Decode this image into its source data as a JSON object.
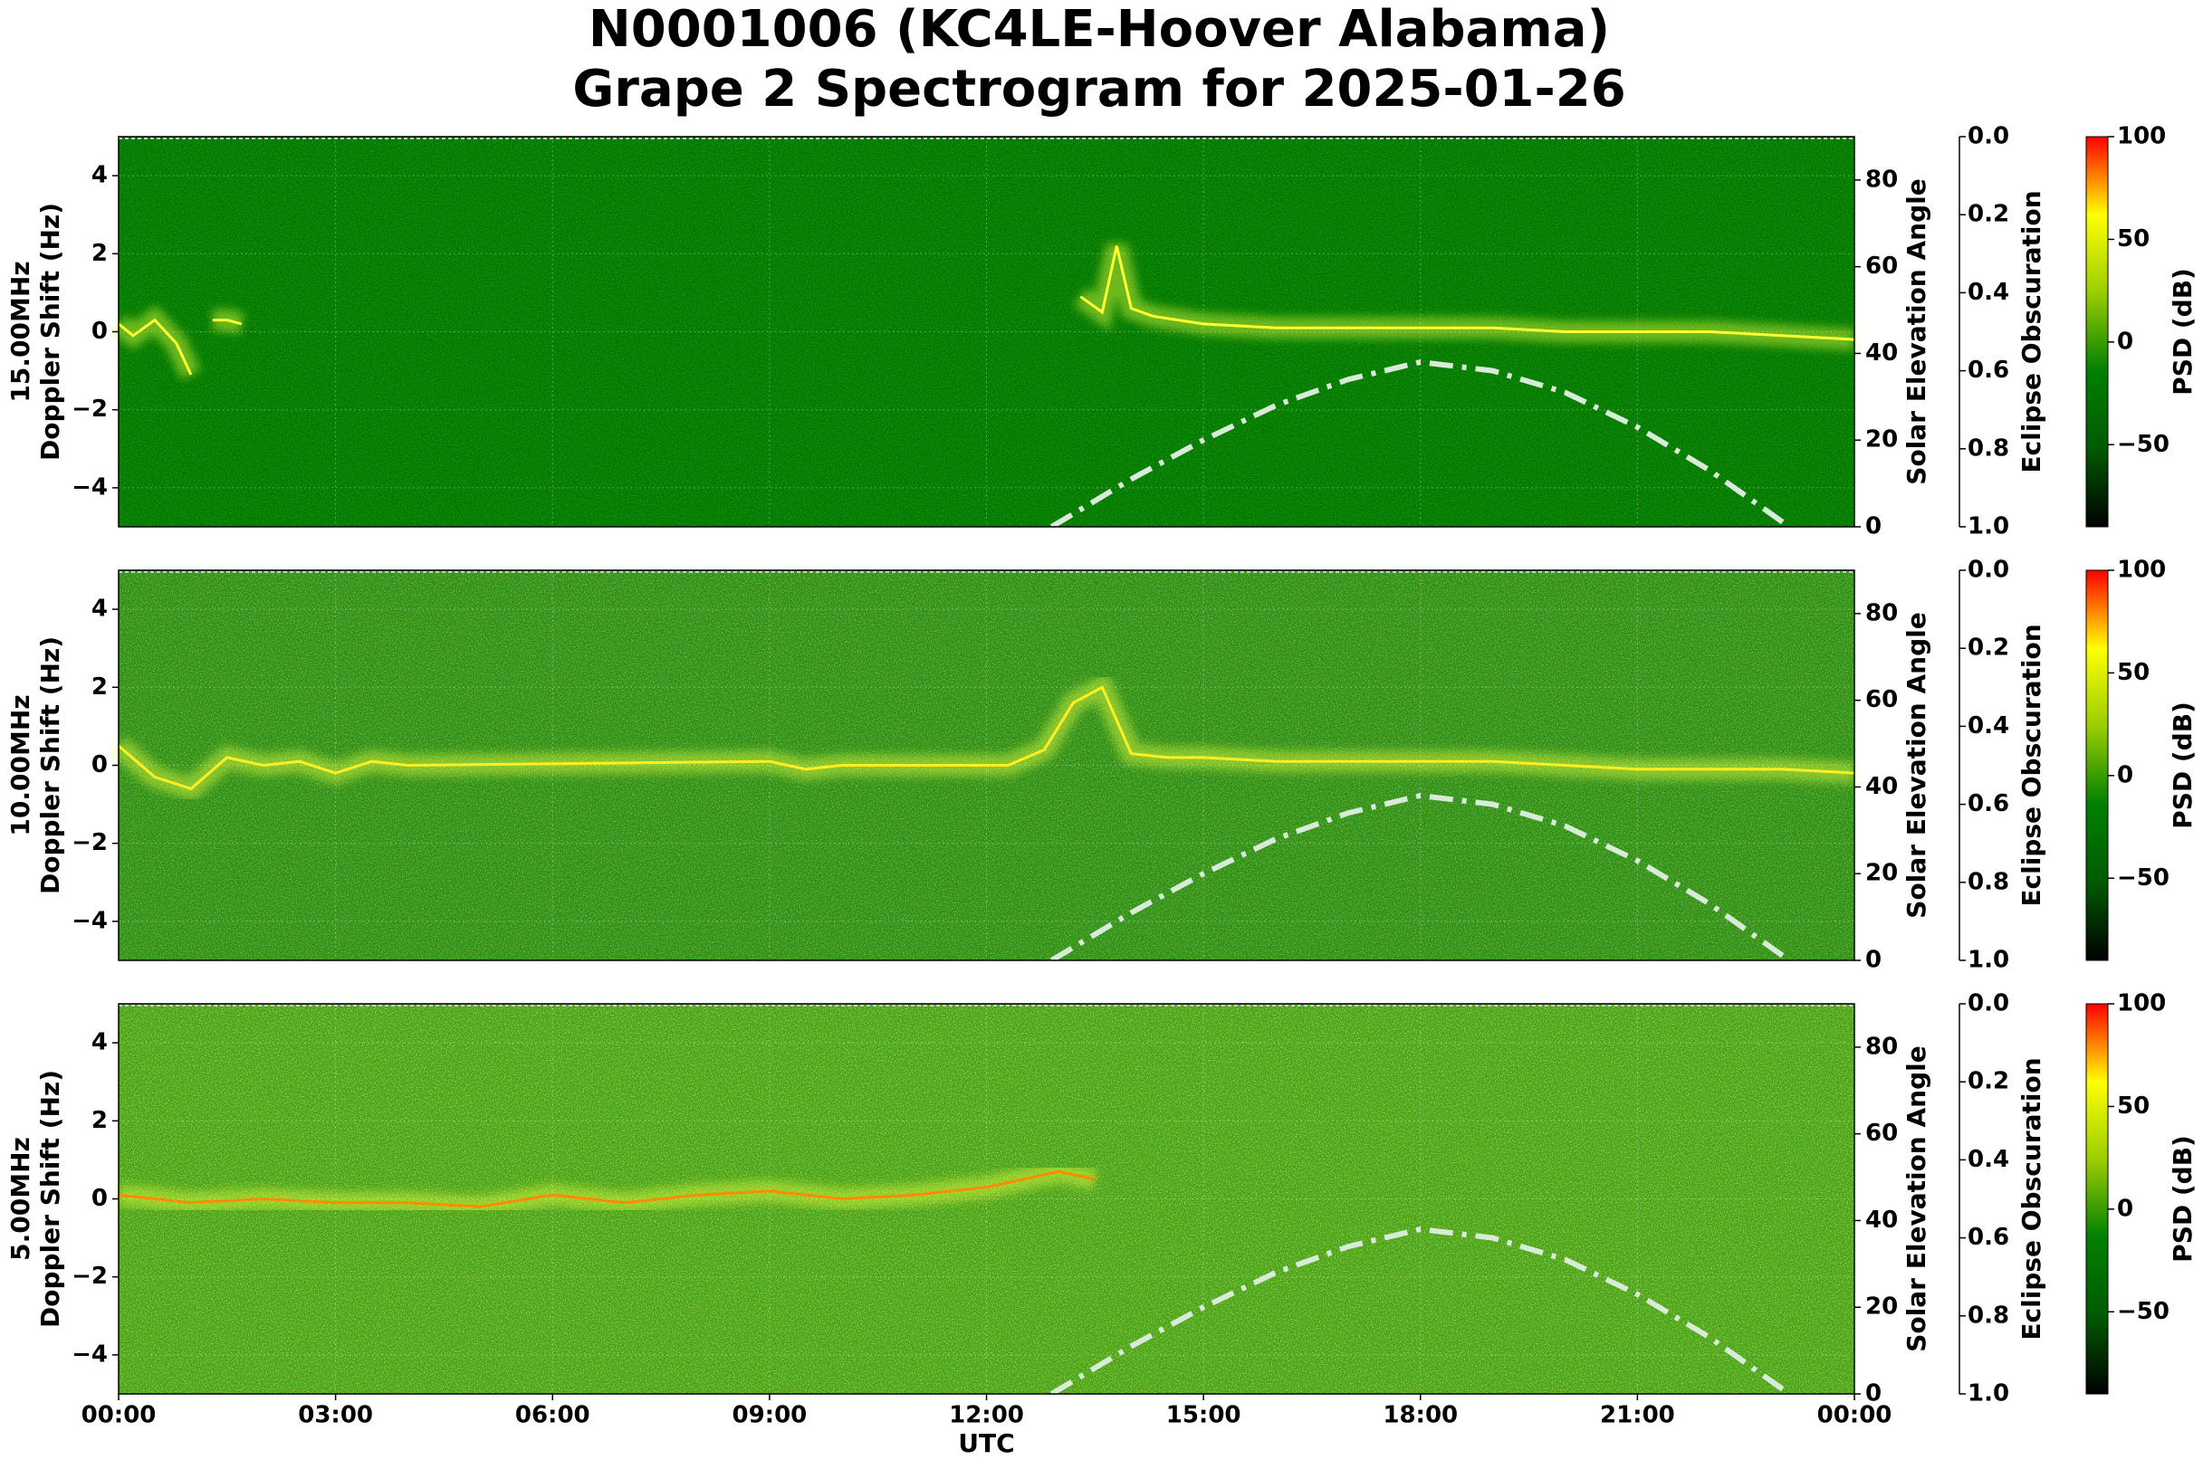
{
  "title": "N0001006 (KC4LE-Hoover Alabama)",
  "subtitle": "Grape 2 Spectrogram for 2025-01-26",
  "x_axis": {
    "label": "UTC",
    "lim": [
      0,
      24
    ],
    "ticks": [
      {
        "value": 0,
        "label": "00:00"
      },
      {
        "value": 3,
        "label": "03:00"
      },
      {
        "value": 6,
        "label": "06:00"
      },
      {
        "value": 9,
        "label": "09:00"
      },
      {
        "value": 12,
        "label": "12:00"
      },
      {
        "value": 15,
        "label": "15:00"
      },
      {
        "value": 18,
        "label": "18:00"
      },
      {
        "value": 21,
        "label": "21:00"
      },
      {
        "value": 24,
        "label": "00:00"
      }
    ]
  },
  "chart_data": [
    {
      "type": "spectrogram",
      "ylabel": [
        "15.00MHz",
        "Doppler Shift (Hz)"
      ],
      "background": "#007a00",
      "ylim": [
        -5,
        5
      ],
      "yticks": [
        {
          "value": -4,
          "label": "−4"
        },
        {
          "value": -2,
          "label": "−2"
        },
        0,
        2,
        4
      ],
      "grid": true,
      "y2label": "Solar Elevation Angle",
      "y2lim": [
        0,
        90
      ],
      "y2ticks": [
        0,
        20,
        40,
        60,
        80
      ],
      "y3label": "Eclipse Obscuration",
      "y3lim": [
        0,
        1
      ],
      "y3_inverted": true,
      "y3ticks": [
        {
          "value": 0,
          "label": "0.0"
        },
        0.2,
        0.4,
        0.6,
        0.8,
        {
          "value": 1,
          "label": "1.0"
        }
      ],
      "colorbar": {
        "label": "PSD (dB)",
        "lim": [
          -90,
          100
        ],
        "ticks": [
          {
            "value": -50,
            "label": "−50"
          },
          0,
          50,
          100
        ],
        "colors": [
          "#000000",
          "#005a00",
          "#008000",
          "#9acd00",
          "#ffff00",
          "#ff0000"
        ]
      },
      "series": [
        {
          "color": "#ffff33",
          "x": [
            0,
            0.2,
            0.5,
            0.8,
            1.0,
            1.1,
            1.3,
            1.5,
            1.7,
            2.0,
            13.3,
            13.6,
            13.8,
            14.0,
            14.3,
            15,
            16,
            17,
            18,
            19,
            20,
            21,
            22,
            23,
            24
          ],
          "values": [
            0.2,
            -0.1,
            0.3,
            -0.3,
            -1.1,
            null,
            0.3,
            0.3,
            0.2,
            null,
            0.9,
            0.5,
            2.2,
            0.6,
            0.4,
            0.2,
            0.1,
            0.1,
            0.1,
            0.1,
            0,
            0,
            0,
            -0.1,
            -0.2
          ]
        },
        {
          "color": "#d8ead8",
          "axis": "y2",
          "linestyle": "dashdot",
          "x": [
            12.9,
            13.5,
            14,
            15,
            16,
            17,
            18,
            19,
            20,
            21,
            22,
            23.1
          ],
          "values": [
            0,
            6,
            11,
            20,
            28,
            34,
            38,
            36,
            31,
            23,
            13,
            0
          ]
        }
      ]
    },
    {
      "type": "spectrogram",
      "ylabel": [
        "10.00MHz",
        "Doppler Shift (Hz)"
      ],
      "background": "#2e8f1c",
      "ylim": [
        -5,
        5
      ],
      "yticks": [
        {
          "value": -4,
          "label": "−4"
        },
        {
          "value": -2,
          "label": "−2"
        },
        0,
        2,
        4
      ],
      "grid": true,
      "y2label": "Solar Elevation Angle",
      "y2lim": [
        0,
        90
      ],
      "y2ticks": [
        0,
        20,
        40,
        60,
        80
      ],
      "y3label": "Eclipse Obscuration",
      "y3lim": [
        0,
        1
      ],
      "y3_inverted": true,
      "y3ticks": [
        {
          "value": 0,
          "label": "0.0"
        },
        0.2,
        0.4,
        0.6,
        0.8,
        {
          "value": 1,
          "label": "1.0"
        }
      ],
      "colorbar": {
        "label": "PSD (dB)",
        "lim": [
          -90,
          100
        ],
        "ticks": [
          {
            "value": -50,
            "label": "−50"
          },
          0,
          50,
          100
        ],
        "colors": [
          "#000000",
          "#005a00",
          "#008000",
          "#9acd00",
          "#ffff00",
          "#ff0000"
        ]
      },
      "series": [
        {
          "color": "#ffee22",
          "x": [
            0,
            0.5,
            1,
            1.5,
            2,
            2.5,
            3,
            3.5,
            4,
            9,
            9.5,
            10,
            12.3,
            12.8,
            13.2,
            13.6,
            14,
            14.5,
            15,
            16,
            17,
            18,
            19,
            20,
            21,
            22,
            23,
            24
          ],
          "values": [
            0.5,
            -0.3,
            -0.6,
            0.2,
            0,
            0.1,
            -0.2,
            0.1,
            0,
            0.1,
            -0.1,
            0,
            0,
            0.4,
            1.6,
            2.0,
            0.3,
            0.2,
            0.2,
            0.1,
            0.1,
            0.1,
            0.1,
            0,
            -0.1,
            -0.1,
            -0.1,
            -0.2
          ]
        },
        {
          "color": "#d8ead8",
          "axis": "y2",
          "linestyle": "dashdot",
          "x": [
            12.9,
            13.5,
            14,
            15,
            16,
            17,
            18,
            19,
            20,
            21,
            22,
            23.1
          ],
          "values": [
            0,
            6,
            11,
            20,
            28,
            34,
            38,
            36,
            31,
            23,
            13,
            0
          ]
        }
      ]
    },
    {
      "type": "spectrogram",
      "ylabel": [
        "5.00MHz",
        "Doppler Shift (Hz)"
      ],
      "background": "#48a21e",
      "ylim": [
        -5,
        5
      ],
      "yticks": [
        {
          "value": -4,
          "label": "−4"
        },
        {
          "value": -2,
          "label": "−2"
        },
        0,
        2,
        4
      ],
      "grid": true,
      "y2label": "Solar Elevation Angle",
      "y2lim": [
        0,
        90
      ],
      "y2ticks": [
        0,
        20,
        40,
        60,
        80
      ],
      "y3label": "Eclipse Obscuration",
      "y3lim": [
        0,
        1
      ],
      "y3_inverted": true,
      "y3ticks": [
        {
          "value": 0,
          "label": "0.0"
        },
        0.2,
        0.4,
        0.6,
        0.8,
        {
          "value": 1,
          "label": "1.0"
        }
      ],
      "colorbar": {
        "label": "PSD (dB)",
        "lim": [
          -90,
          100
        ],
        "ticks": [
          {
            "value": -50,
            "label": "−50"
          },
          0,
          50,
          100
        ],
        "colors": [
          "#000000",
          "#005a00",
          "#008000",
          "#9acd00",
          "#ffff00",
          "#ff0000"
        ]
      },
      "series": [
        {
          "color": "#ff8c00",
          "x": [
            0,
            1,
            2,
            3,
            4,
            5,
            6,
            7,
            8,
            9,
            10,
            11,
            12,
            13,
            13.5
          ],
          "values": [
            0.1,
            -0.1,
            0,
            -0.1,
            -0.1,
            -0.2,
            0.1,
            -0.1,
            0.1,
            0.2,
            0,
            0.1,
            0.3,
            0.7,
            0.5
          ]
        },
        {
          "color": "#d8ead8",
          "axis": "y2",
          "linestyle": "dashdot",
          "x": [
            12.9,
            13.5,
            14,
            15,
            16,
            17,
            18,
            19,
            20,
            21,
            22,
            23.1
          ],
          "values": [
            0,
            6,
            11,
            20,
            28,
            34,
            38,
            36,
            31,
            23,
            13,
            0
          ]
        }
      ]
    }
  ]
}
